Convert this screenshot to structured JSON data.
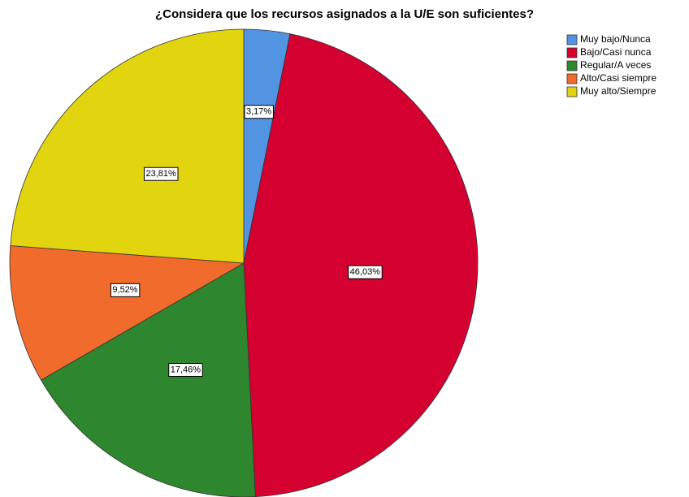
{
  "chart_data": {
    "type": "pie",
    "title": "¿Considera que los recursos asignados a la U/E son suficientes?",
    "categories": [
      "Muy bajo/Nunca",
      "Bajo/Casi nunca",
      "Regular/A veces",
      "Alto/Casi siempre",
      "Muy alto/Siempre"
    ],
    "values": [
      3.17,
      46.03,
      17.46,
      9.52,
      23.81
    ],
    "value_labels": [
      "3,17%",
      "46,03%",
      "17,46%",
      "9,52%",
      "23,81%"
    ],
    "colors": [
      "#5294e2",
      "#d40030",
      "#2e862e",
      "#f06b2c",
      "#e2d40e"
    ],
    "legend": "top-right"
  }
}
